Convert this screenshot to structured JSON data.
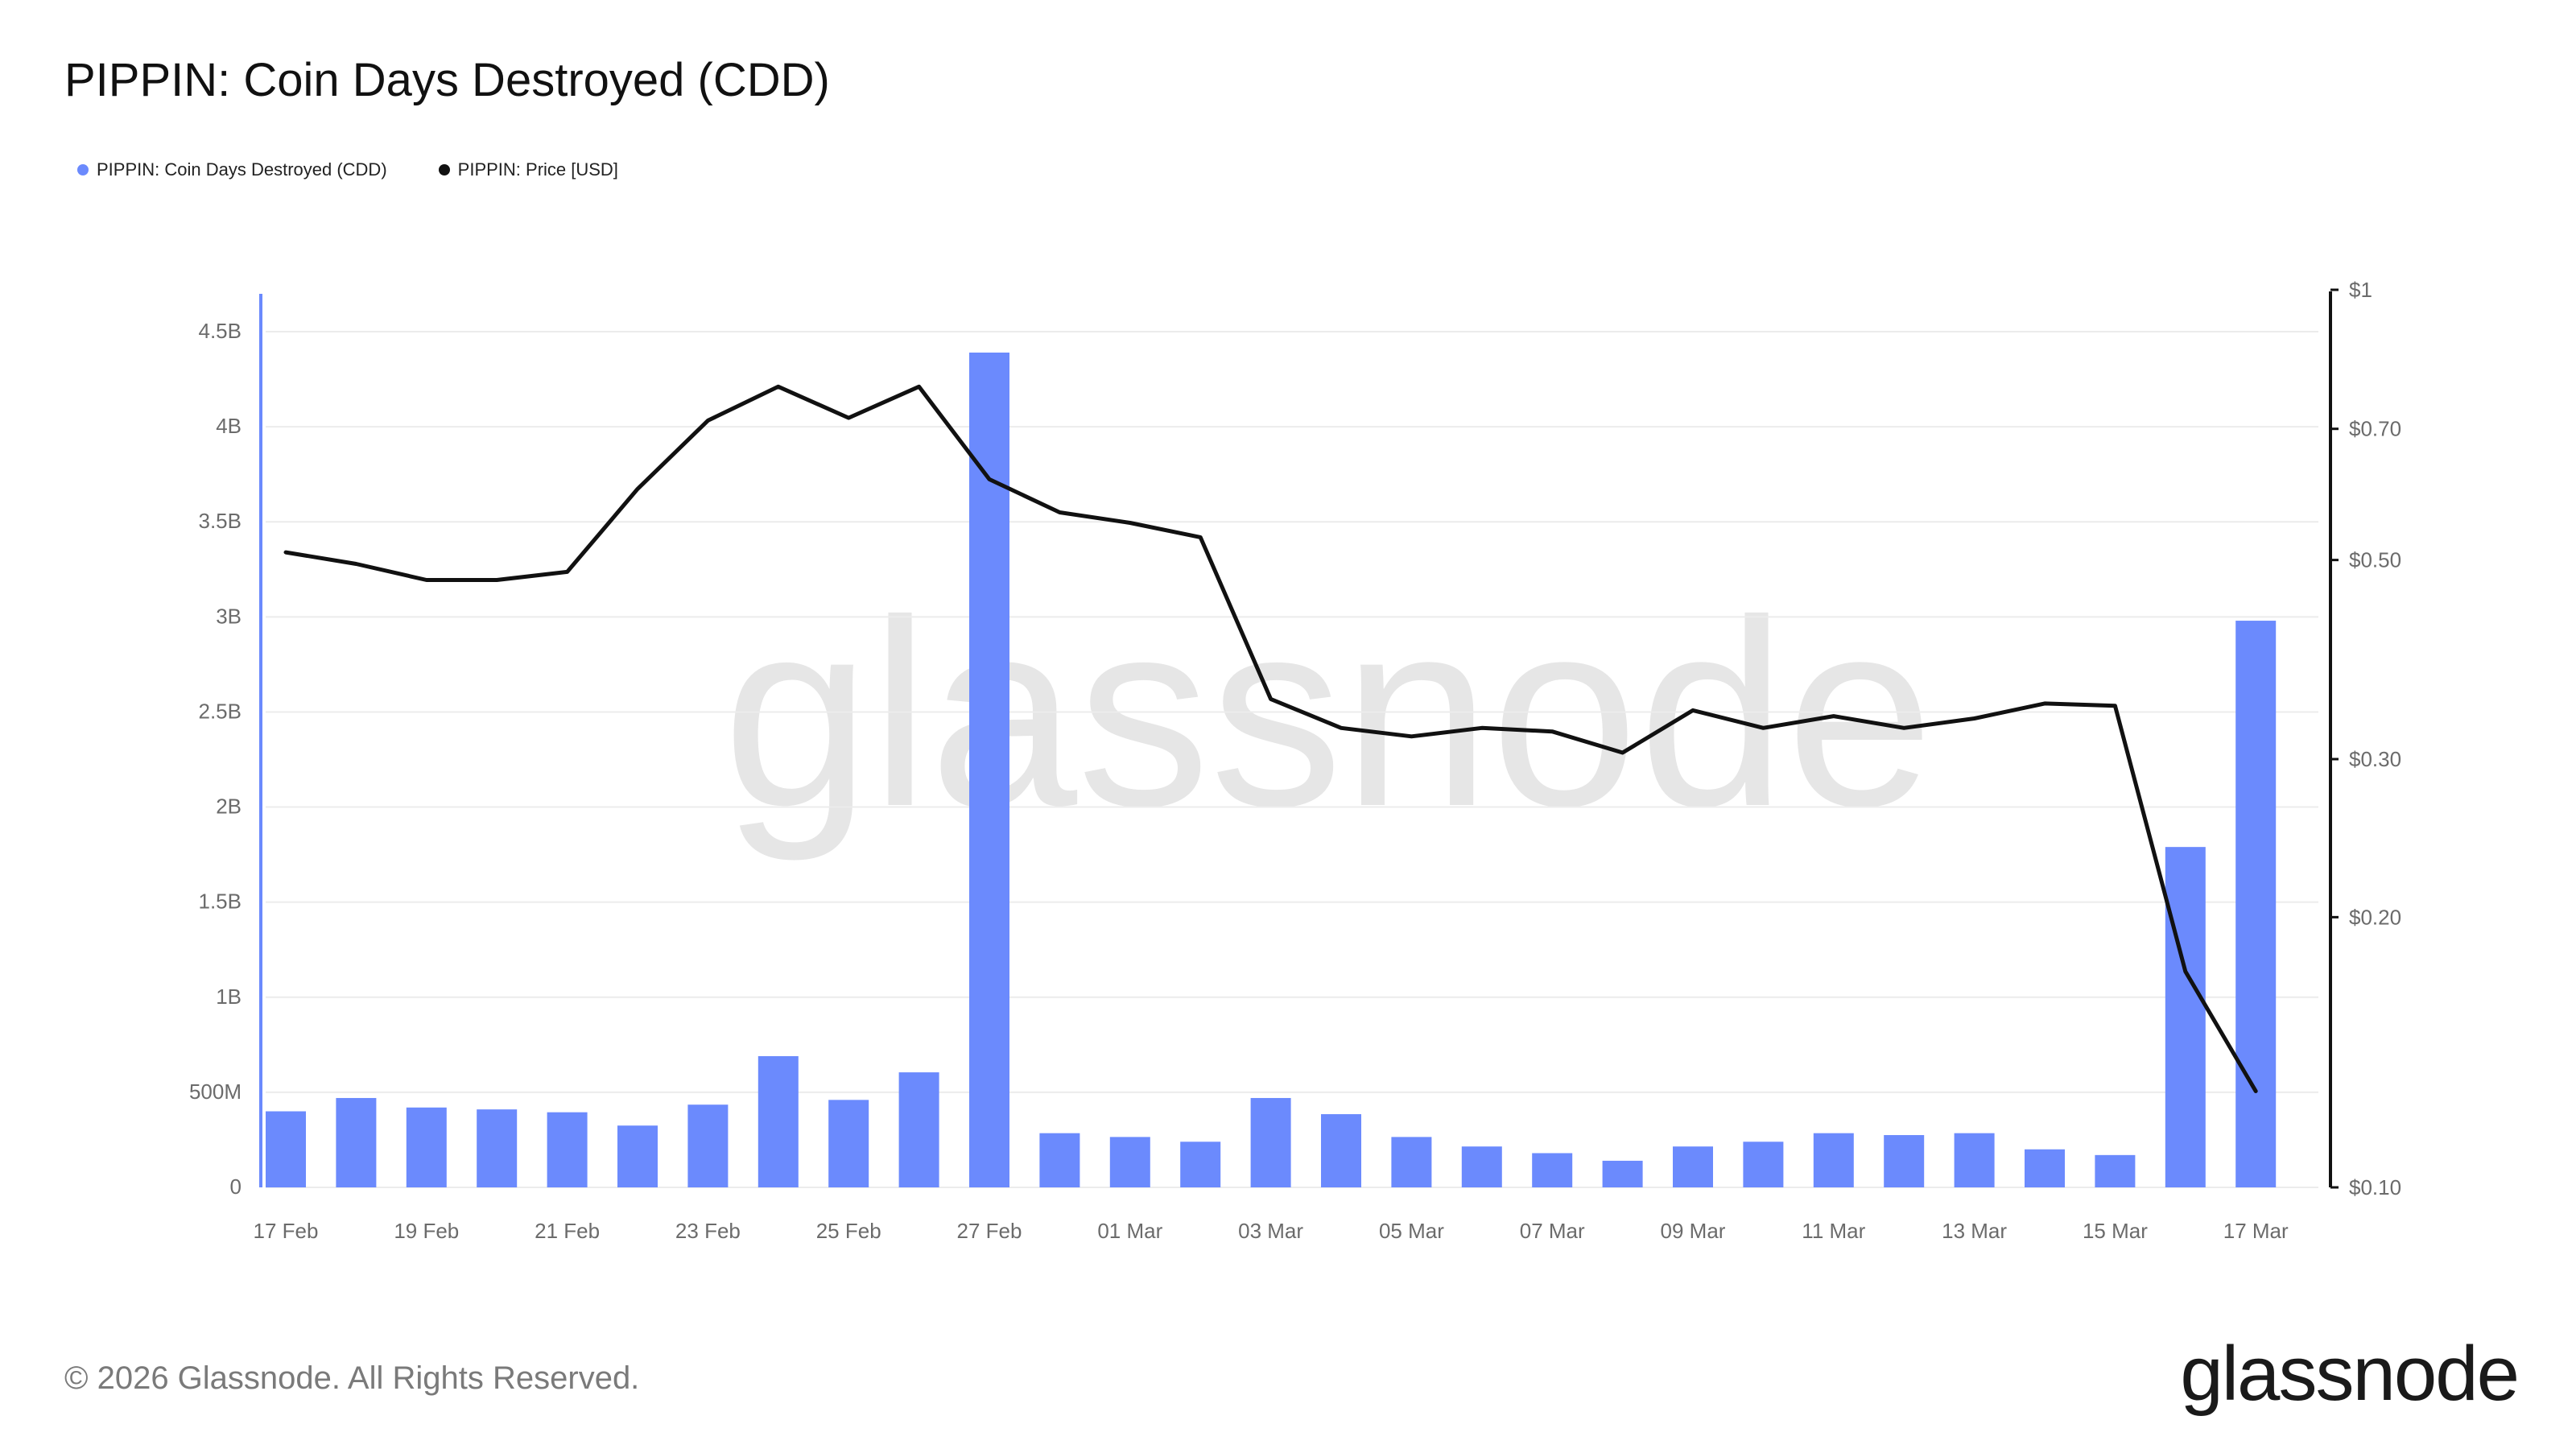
{
  "header": {
    "title": "PIPPIN: Coin Days Destroyed (CDD)"
  },
  "legend": [
    {
      "label": "PIPPIN: Coin Days Destroyed (CDD)",
      "color": "#6b8afd"
    },
    {
      "label": "PIPPIN: Price [USD]",
      "color": "#111111"
    }
  ],
  "watermark": "glassnode",
  "footer": {
    "copyright": "© 2026 Glassnode. All Rights Reserved.",
    "brand": "glassnode"
  },
  "chart_data": {
    "type": "bar",
    "title": "PIPPIN: Coin Days Destroyed (CDD)",
    "grid": true,
    "x_tick_labels": [
      "17 Feb",
      "19 Feb",
      "21 Feb",
      "23 Feb",
      "25 Feb",
      "27 Feb",
      "01 Mar",
      "03 Mar",
      "05 Mar",
      "07 Mar",
      "09 Mar",
      "11 Mar",
      "13 Mar",
      "15 Mar",
      "17 Mar"
    ],
    "categories": [
      "17 Feb",
      "18 Feb",
      "19 Feb",
      "20 Feb",
      "21 Feb",
      "22 Feb",
      "23 Feb",
      "24 Feb",
      "25 Feb",
      "26 Feb",
      "27 Feb",
      "28 Feb",
      "01 Mar",
      "02 Mar",
      "03 Mar",
      "04 Mar",
      "05 Mar",
      "06 Mar",
      "07 Mar",
      "08 Mar",
      "09 Mar",
      "10 Mar",
      "11 Mar",
      "12 Mar",
      "13 Mar",
      "14 Mar",
      "15 Mar",
      "16 Mar",
      "17 Mar"
    ],
    "left_axis": {
      "ticks": [
        0,
        500000000,
        1000000000,
        1500000000,
        2000000000,
        2500000000,
        3000000000,
        3500000000,
        4000000000,
        4500000000
      ],
      "tick_labels": [
        "0",
        "500M",
        "1B",
        "1.5B",
        "2B",
        "2.5B",
        "3B",
        "3.5B",
        "4B",
        "4.5B"
      ],
      "range": [
        0,
        4700000000
      ]
    },
    "right_axis": {
      "scale": "log",
      "ticks": [
        0.1,
        0.2,
        0.3,
        0.5,
        0.7,
        1
      ],
      "tick_labels": [
        "$0.10",
        "$0.20",
        "$0.30",
        "$0.50",
        "$0.70",
        "$1"
      ],
      "range": [
        0.1,
        1.0
      ]
    },
    "series": [
      {
        "name": "PIPPIN: Coin Days Destroyed (CDD)",
        "type": "bar",
        "axis": "left",
        "color": "#6b8afd",
        "values": [
          400000000,
          470000000,
          420000000,
          410000000,
          395000000,
          325000000,
          435000000,
          690000000,
          460000000,
          605000000,
          4390000000,
          285000000,
          265000000,
          240000000,
          470000000,
          385000000,
          265000000,
          215000000,
          180000000,
          140000000,
          215000000,
          240000000,
          285000000,
          275000000,
          285000000,
          200000000,
          170000000,
          1790000000,
          2980000000
        ]
      },
      {
        "name": "PIPPIN: Price [USD]",
        "type": "line",
        "axis": "right",
        "color": "#111111",
        "values": [
          0.51,
          0.495,
          0.475,
          0.475,
          0.485,
          0.6,
          0.715,
          0.78,
          0.72,
          0.78,
          0.615,
          0.565,
          0.55,
          0.53,
          0.35,
          0.325,
          0.318,
          0.325,
          0.322,
          0.305,
          0.34,
          0.325,
          0.335,
          0.325,
          0.333,
          0.346,
          0.344,
          0.174,
          0.128
        ]
      }
    ]
  }
}
